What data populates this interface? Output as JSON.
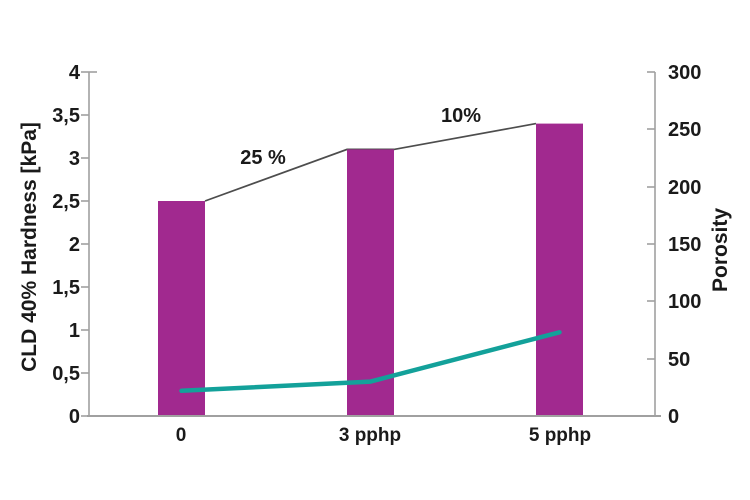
{
  "chart_data": {
    "type": "combo",
    "categories": [
      "0",
      "3 pphp",
      "5 pphp"
    ],
    "series": [
      {
        "name": "CLD 40% Hardness",
        "type": "bar",
        "axis": "left",
        "values": [
          2.5,
          3.1,
          3.4
        ],
        "color": "#A1298F"
      },
      {
        "name": "Porosity",
        "type": "line",
        "axis": "right",
        "values": [
          22,
          30,
          73
        ],
        "color": "#13A19A"
      }
    ],
    "connector_color": "#4D4D4D",
    "annotations": [
      {
        "text": "25 %",
        "color": "#EE7524"
      },
      {
        "text": "10%",
        "color": "#EE7524"
      }
    ],
    "left_axis": {
      "label": "CLD 40% Hardness [kPa]",
      "range": [
        0,
        4
      ],
      "ticks": [
        "4",
        "3,5",
        "3",
        "2,5",
        "2",
        "1,5",
        "1",
        "0,5",
        "0"
      ]
    },
    "right_axis": {
      "label": "Porosity",
      "range": [
        0,
        300
      ],
      "ticks": [
        "300",
        "250",
        "200",
        "150",
        "100",
        "50",
        "0"
      ]
    },
    "grid": false,
    "legend": false,
    "axis_color": "#A0A0A0"
  }
}
